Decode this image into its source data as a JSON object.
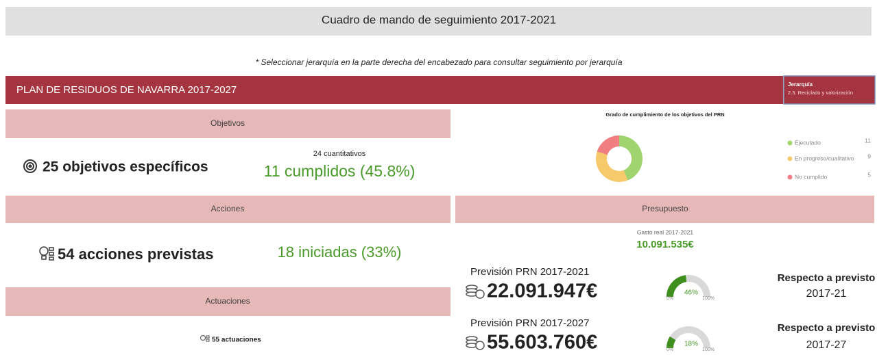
{
  "header": {
    "title": "Cuadro de mando de seguimiento 2017-2021"
  },
  "note": "* Seleccionar jerarquía en la parte derecha del encabezado para consultar seguimiento por jerarquía",
  "banner": {
    "title": "PLAN DE RESIDUOS DE NAVARRA 2017-2027",
    "hierarchy_label": "Jerarquía",
    "hierarchy_value": "2.3. Reciclado y valorización"
  },
  "objetivos": {
    "header": "Objetivos",
    "main": "25 objetivos específicos",
    "sub": "24 cuantitativos",
    "highlight": "11 cumplidos (45.8%)"
  },
  "donut": {
    "type": "pie",
    "title": "Grado de cumplimiento de los objetivos del PRN",
    "categories": [
      "Ejecutado",
      "En progreso/cualitativo",
      "No cumplido"
    ],
    "values": [
      11,
      9,
      5
    ],
    "colors": [
      "#9fd46f",
      "#f6c96b",
      "#f17f82"
    ]
  },
  "acciones": {
    "header": "Acciones",
    "main": "54 acciones previstas",
    "highlight": "18 iniciadas (33%)"
  },
  "actuaciones": {
    "header": "Actuaciones",
    "main": "55 actuaciones"
  },
  "presupuesto": {
    "header": "Presupuesto",
    "gasto_label": "Gasto real 2017-2021",
    "gasto_value": "10.091.535€",
    "rows": [
      {
        "label": "Previsión PRN 2017-2021",
        "amount": "22.091.947€",
        "gauge": {
          "value": 46,
          "value_label": "46%",
          "min": {
            "value": 0,
            "label": "0%"
          },
          "max": {
            "value": 100,
            "label": "100%"
          }
        },
        "compare_label": "Respecto a previsto",
        "compare_period": "2017-21"
      },
      {
        "label": "Previsión PRN 2017-2027",
        "amount": "55.603.760€",
        "gauge": {
          "value": 18,
          "value_label": "18%",
          "min": {
            "value": 0,
            "label": "0%"
          },
          "max": {
            "value": 100,
            "label": "100%"
          }
        },
        "compare_label": "Respecto a previsto",
        "compare_period": "2017-27"
      }
    ]
  }
}
